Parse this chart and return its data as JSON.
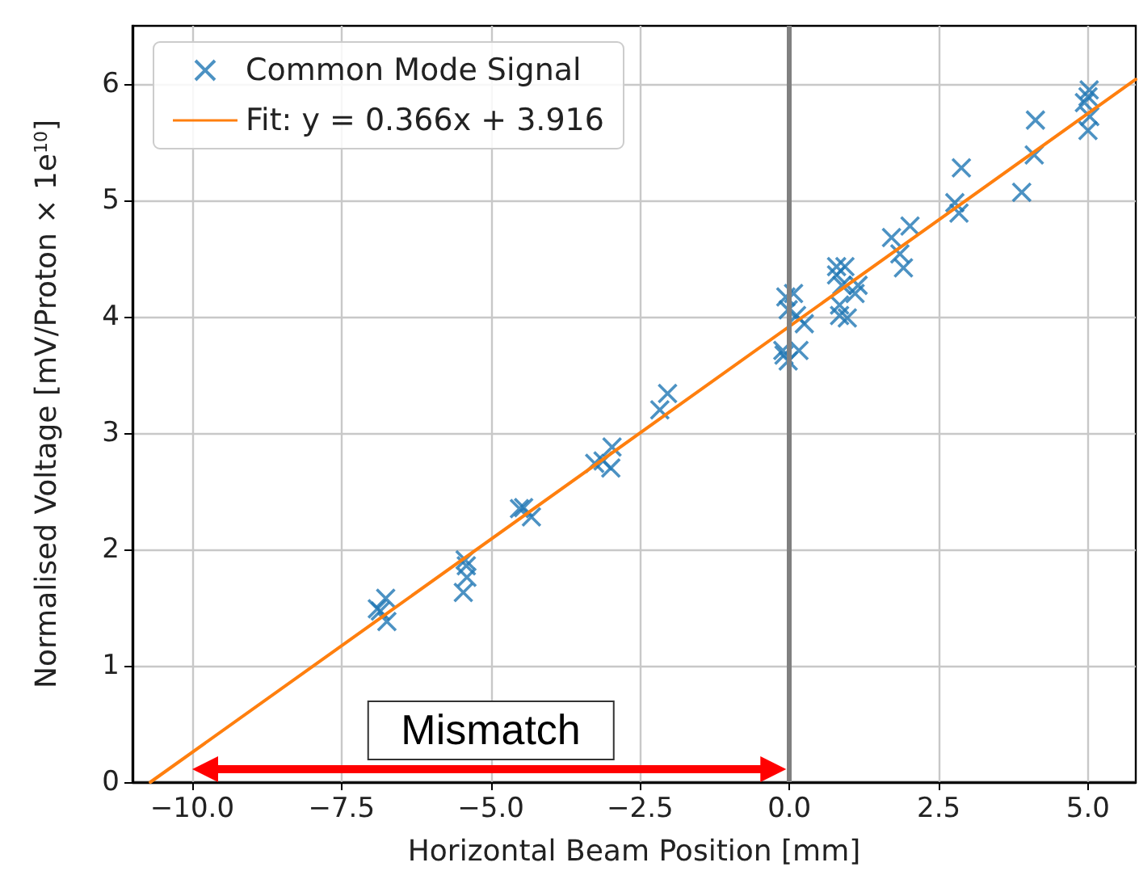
{
  "chart_data": {
    "type": "scatter",
    "xlabel": "Horizontal Beam Position [mm]",
    "ylabel": "Normalised Voltage [mV/Proton × 1e$^{10}$]",
    "xlim": [
      -11,
      5.8
    ],
    "ylim": [
      0,
      6.5
    ],
    "xticks": [
      {
        "value": -10,
        "label": "−10.0"
      },
      {
        "value": -7.5,
        "label": "−7.5"
      },
      {
        "value": -5,
        "label": "−5.0"
      },
      {
        "value": -2.5,
        "label": "−2.5"
      },
      {
        "value": 0,
        "label": "0.0"
      },
      {
        "value": 2.5,
        "label": "2.5"
      },
      {
        "value": 5,
        "label": "5.0"
      }
    ],
    "yticks": [
      0,
      1,
      2,
      3,
      4,
      5,
      6
    ],
    "grid": true,
    "legend": "top left",
    "marker": "cross",
    "series": [
      {
        "name": "Common Mode Signal",
        "color": "#1f77b4",
        "x": [
          -6.85,
          -6.76,
          -6.74,
          -6.9,
          -5.46,
          -5.4,
          -5.41,
          -5.43,
          -4.52,
          -4.45,
          -4.32,
          -3.26,
          -3.12,
          -2.97,
          -2.99,
          -2.17,
          -2.04,
          -0.06,
          0.07,
          -0.02,
          0.12,
          0.25,
          -0.11,
          -0.02,
          0.16,
          -0.09,
          0.79,
          0.93,
          0.79,
          0.88,
          1.15,
          1.1,
          0.84,
          0.84,
          0.97,
          1.71,
          2.02,
          1.85,
          1.91,
          2.77,
          2.88,
          2.84,
          3.89,
          4.12,
          4.1,
          5.02,
          5.0,
          4.94,
          5.03,
          5.0
        ],
        "values": [
          1.47,
          1.58,
          1.38,
          1.49,
          1.63,
          1.76,
          1.86,
          1.91,
          2.35,
          2.36,
          2.28,
          2.74,
          2.76,
          2.88,
          2.7,
          3.2,
          3.34,
          4.17,
          4.2,
          4.06,
          4.01,
          3.94,
          3.71,
          3.62,
          3.71,
          3.67,
          4.43,
          4.43,
          4.36,
          4.27,
          4.27,
          4.2,
          4.1,
          4.01,
          3.99,
          4.68,
          4.78,
          4.54,
          4.42,
          4.98,
          5.28,
          4.89,
          5.07,
          5.69,
          5.39,
          5.95,
          5.89,
          5.84,
          5.72,
          5.6
        ]
      },
      {
        "name": "Fit: y = 0.366x + 3.916",
        "type": "line",
        "color": "#ff7f0e",
        "marker": "none",
        "x": [
          -10.7,
          5.8
        ],
        "values": [
          0.0,
          6.04
        ]
      }
    ],
    "ref_lines": [
      {
        "axis": "x",
        "value": 0,
        "color": "#808080"
      }
    ],
    "annotations": [
      "Mismatch"
    ]
  }
}
